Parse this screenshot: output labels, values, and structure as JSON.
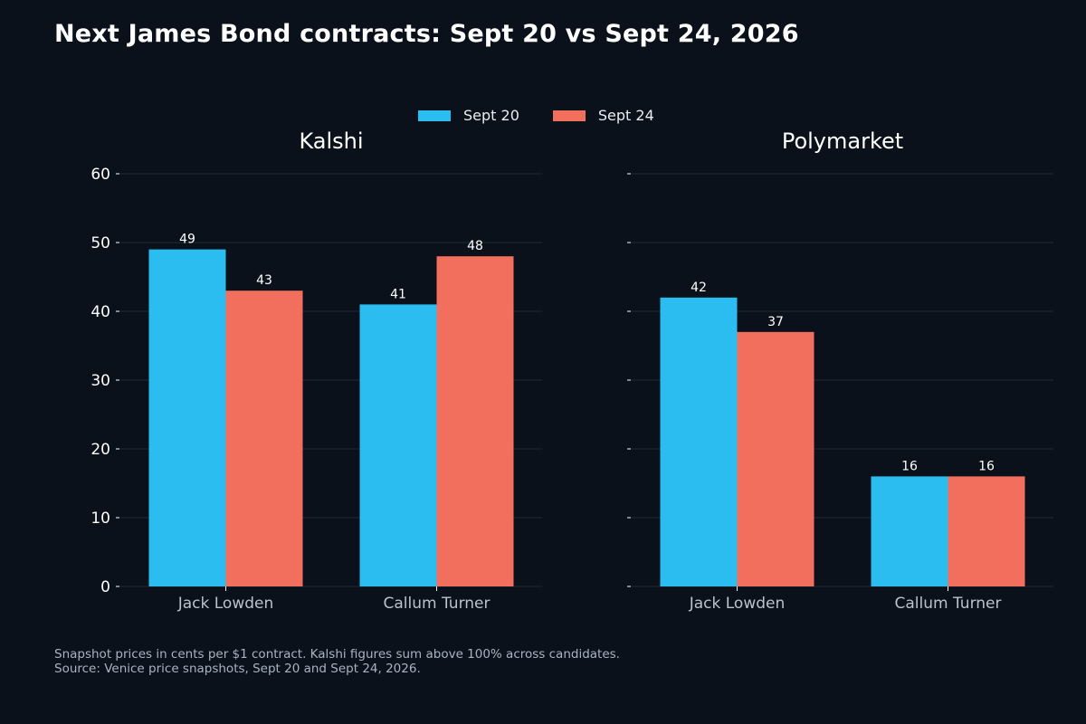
{
  "title": "Next James Bond contracts: Sept 20 vs Sept 24, 2026",
  "legend": {
    "items": [
      {
        "label": "Sept 20",
        "color": "#2bbcf0"
      },
      {
        "label": "Sept 24",
        "color": "#f26f5e"
      }
    ]
  },
  "footnote": {
    "line1": "Snapshot prices in cents per $1 contract. Kalshi figures sum above 100% across candidates.",
    "line2": "Source: Venice price snapshots, Sept 20 and Sept 24, 2026."
  },
  "colors": {
    "background": "#0a111b",
    "grid": "#1f2a36",
    "tick_label": "#ffffff",
    "category_label": "#b9c2cd"
  },
  "chart_data": [
    {
      "type": "bar",
      "title": "Kalshi",
      "categories": [
        "Jack Lowden",
        "Callum Turner"
      ],
      "series": [
        {
          "name": "Sept 20",
          "values": [
            49,
            41
          ]
        },
        {
          "name": "Sept 24",
          "values": [
            43,
            48
          ]
        }
      ],
      "yticks": [
        "0",
        "10",
        "20",
        "30",
        "40",
        "50",
        "60"
      ],
      "ylim": [
        0,
        60
      ],
      "grid": true,
      "show_ytick_labels": true
    },
    {
      "type": "bar",
      "title": "Polymarket",
      "categories": [
        "Jack Lowden",
        "Callum Turner"
      ],
      "series": [
        {
          "name": "Sept 20",
          "values": [
            42,
            16
          ]
        },
        {
          "name": "Sept 24",
          "values": [
            37,
            16
          ]
        }
      ],
      "ylim": [
        0,
        60
      ],
      "grid": true,
      "show_ytick_labels": false
    }
  ]
}
